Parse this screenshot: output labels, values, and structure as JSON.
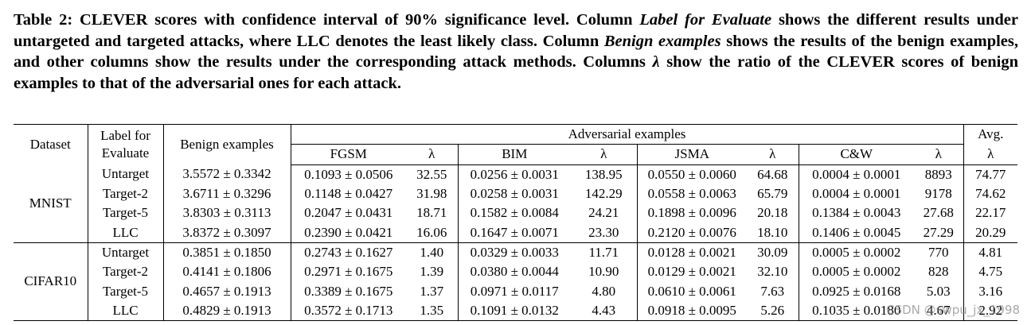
{
  "caption": [
    "Table 2: CLEVER scores with confidence interval of 90% significance level. Column ",
    "Label for Evaluate",
    " shows the different results under untargeted and targeted attacks, where LLC denotes the least likely class. Column ",
    "Benign examples",
    " shows the results of the benign examples, and other columns show the results under the corresponding attack methods. Columns ",
    "λ",
    " show the ratio of the CLEVER scores of benign examples to that of the adversarial ones for each attack."
  ],
  "table": {
    "header": {
      "dataset": "Dataset",
      "label": "Label for Evaluate",
      "benign": "Benign examples",
      "adversarial": "Adversarial examples",
      "avg": "Avg.",
      "sub": [
        "FGSM",
        "λ",
        "BIM",
        "λ",
        "JSMA",
        "λ",
        "C&W",
        "λ",
        "λ"
      ]
    },
    "groups": [
      {
        "dataset": "MNIST",
        "rows": [
          [
            "Untarget",
            "3.5572 ± 0.3342",
            "0.1093 ± 0.0506",
            "32.55",
            "0.0256 ± 0.0031",
            "138.95",
            "0.0550 ± 0.0060",
            "64.68",
            "0.0004 ± 0.0001",
            "8893",
            "74.77"
          ],
          [
            "Target-2",
            "3.6711 ± 0.3296",
            "0.1148 ± 0.0427",
            "31.98",
            "0.0258 ± 0.0031",
            "142.29",
            "0.0558 ± 0.0063",
            "65.79",
            "0.0004 ± 0.0001",
            "9178",
            "74.62"
          ],
          [
            "Target-5",
            "3.8303 ± 0.3113",
            "0.2047 ± 0.0431",
            "18.71",
            "0.1582 ± 0.0084",
            "24.21",
            "0.1898 ± 0.0096",
            "20.18",
            "0.1384 ± 0.0043",
            "27.68",
            "22.17"
          ],
          [
            "LLC",
            "3.8372 ± 0.3097",
            "0.2390 ± 0.0421",
            "16.06",
            "0.1647 ± 0.0071",
            "23.30",
            "0.2120 ± 0.0076",
            "18.10",
            "0.1406 ± 0.0045",
            "27.29",
            "20.29"
          ]
        ]
      },
      {
        "dataset": "CIFAR10",
        "rows": [
          [
            "Untarget",
            "0.3851 ± 0.1850",
            "0.2743 ± 0.1627",
            "1.40",
            "0.0329 ± 0.0033",
            "11.71",
            "0.0128 ± 0.0021",
            "30.09",
            "0.0005 ± 0.0002",
            "770",
            "4.81"
          ],
          [
            "Target-2",
            "0.4141 ± 0.1806",
            "0.2971 ± 0.1675",
            "1.39",
            "0.0380 ± 0.0044",
            "10.90",
            "0.0129 ± 0.0021",
            "32.10",
            "0.0005 ± 0.0002",
            "828",
            "4.75"
          ],
          [
            "Target-5",
            "0.4657 ± 0.1913",
            "0.3389 ± 0.1675",
            "1.37",
            "0.0971 ± 0.0117",
            "4.80",
            "0.0610 ± 0.0061",
            "7.63",
            "0.0925 ± 0.0168",
            "5.03",
            "3.16"
          ],
          [
            "LLC",
            "0.4829 ± 0.1913",
            "0.3572 ± 0.1713",
            "1.35",
            "0.1091 ± 0.0132",
            "4.43",
            "0.0918 ± 0.0095",
            "5.26",
            "0.1035 ± 0.0180",
            "4.67",
            "2.92"
          ]
        ]
      }
    ]
  },
  "watermark": "CSDN @swpu_jx_1998"
}
